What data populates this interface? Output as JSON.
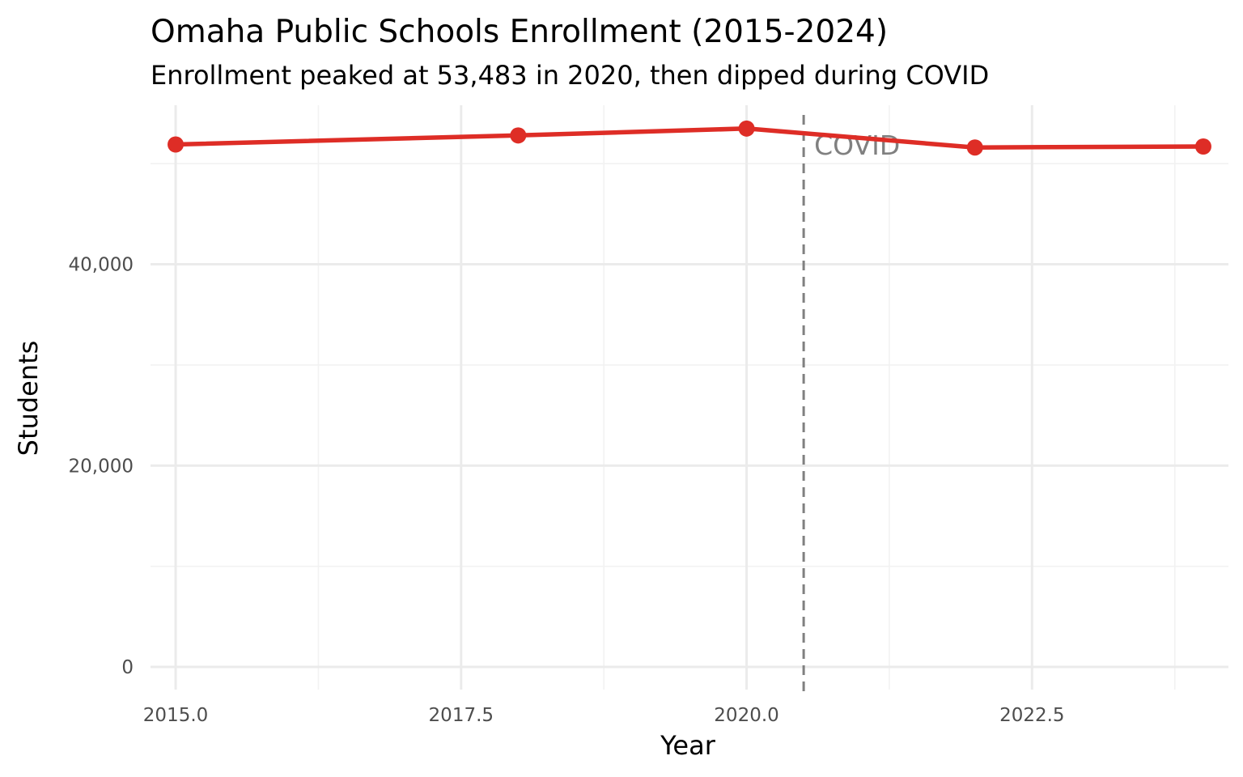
{
  "chart_data": {
    "type": "line",
    "title": "Omaha Public Schools Enrollment (2015-2024)",
    "subtitle": "Enrollment peaked at 53,483 in 2020, then dipped during COVID",
    "xlabel": "Year",
    "ylabel": "Students",
    "xlim": [
      2014.78,
      2024.22
    ],
    "ylim": [
      -2250,
      55800
    ],
    "x_ticks": [
      2015,
      2017.5,
      2020,
      2022.5
    ],
    "x_tick_labels": [
      "2015.0",
      "2017.5",
      "2020.0",
      "2022.5"
    ],
    "y_ticks": [
      0,
      20000,
      40000
    ],
    "y_tick_labels": [
      "0",
      "20,000",
      "40,000"
    ],
    "grid": true,
    "legend": "none",
    "series": [
      {
        "color": "#de2d26",
        "x": [
          2015,
          2018,
          2020,
          2022,
          2024
        ],
        "y": [
          51900,
          52800,
          53483,
          51600,
          51700
        ]
      }
    ],
    "annotations": [
      {
        "type": "vline",
        "x": 2020.5,
        "label": "COVID",
        "color": "#808080",
        "linestyle": "dashed"
      }
    ]
  }
}
